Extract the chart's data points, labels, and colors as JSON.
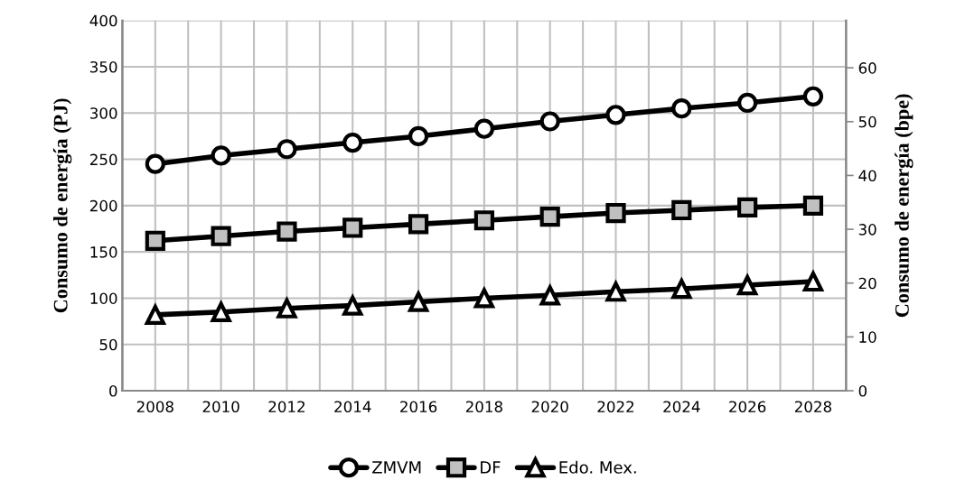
{
  "chart_data": {
    "type": "line",
    "ylabel": "Consumo de energía (PJ)",
    "y2label": "Consumo de energía (bpe)",
    "x": [
      2008,
      2010,
      2012,
      2014,
      2016,
      2018,
      2020,
      2022,
      2024,
      2026,
      2028
    ],
    "xlim": [
      2007,
      2029
    ],
    "xticks": [
      2008,
      {
        "value": 2009,
        "label": null
      },
      2010,
      {
        "value": 2011,
        "label": null
      },
      2012,
      {
        "value": 2013,
        "label": null
      },
      2014,
      {
        "value": 2015,
        "label": null
      },
      2016,
      {
        "value": 2017,
        "label": null
      },
      2018,
      {
        "value": 2019,
        "label": null
      },
      2020,
      {
        "value": 2021,
        "label": null
      },
      2022,
      {
        "value": 2023,
        "label": null
      },
      2024,
      {
        "value": 2025,
        "label": null
      },
      2026,
      {
        "value": 2027,
        "label": null
      },
      2028
    ],
    "ylim": [
      0,
      400
    ],
    "yticks": [
      0,
      50,
      100,
      150,
      200,
      250,
      300,
      350,
      400
    ],
    "y2lim": [
      0,
      68.8
    ],
    "y2ticks": [
      0,
      10,
      20,
      30,
      40,
      50,
      60
    ],
    "grid": true,
    "legend": "bottom",
    "line_style": "solid",
    "series": [
      {
        "name": "ZMVM",
        "color": "#ffffff",
        "marker": "circle",
        "values": [
          245,
          254,
          261,
          268,
          275,
          283,
          291,
          298,
          305,
          311,
          318
        ]
      },
      {
        "name": "DF",
        "color": "#c0c0c0",
        "marker": "square",
        "values": [
          162,
          167,
          172,
          176,
          180,
          184,
          188,
          192,
          195,
          198,
          200
        ]
      },
      {
        "name": "Edo. Mex.",
        "color": "#ffffff",
        "marker": "triangle",
        "values": [
          82,
          85,
          89,
          92,
          96,
          100,
          103,
          107,
          110,
          114,
          118
        ]
      }
    ]
  }
}
